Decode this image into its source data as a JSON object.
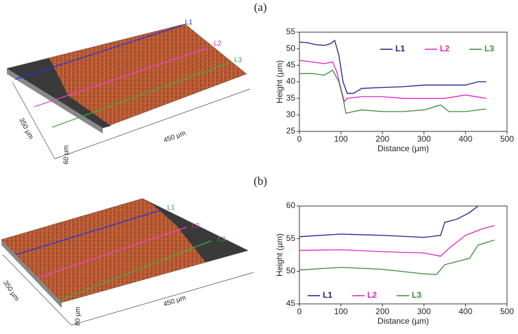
{
  "chart_data": [
    {
      "type": "line",
      "label": "(a)",
      "xlabel": "Distance (µm)",
      "ylabel": "Height (µm)",
      "xlim": [
        0,
        500
      ],
      "xticks": [
        0,
        100,
        200,
        300,
        400,
        500
      ],
      "ylim": [
        25,
        55
      ],
      "yticks": [
        25,
        30,
        35,
        40,
        45,
        50,
        55
      ],
      "legend": "upper right",
      "series": [
        {
          "name": "L1",
          "color": "#1a1a8c",
          "x": [
            0,
            20,
            40,
            60,
            75,
            85,
            95,
            105,
            115,
            130,
            150,
            200,
            250,
            300,
            350,
            400,
            430,
            450
          ],
          "values": [
            52,
            51.8,
            51.2,
            51,
            51.5,
            52.5,
            48,
            40,
            36.5,
            36.5,
            38,
            38.3,
            38.5,
            39,
            39,
            39,
            40,
            40
          ]
        },
        {
          "name": "L2",
          "color": "#e020c0",
          "x": [
            0,
            30,
            60,
            80,
            90,
            100,
            108,
            115,
            150,
            200,
            250,
            300,
            350,
            400,
            450
          ],
          "values": [
            46.5,
            46,
            45.5,
            46,
            43,
            38,
            34,
            35,
            35.5,
            35.5,
            35,
            35,
            35,
            36,
            35
          ]
        },
        {
          "name": "L3",
          "color": "#3a8a3a",
          "x": [
            0,
            30,
            60,
            80,
            95,
            105,
            112,
            130,
            150,
            200,
            250,
            300,
            340,
            360,
            400,
            450
          ],
          "values": [
            42.5,
            42.5,
            42,
            43.5,
            40,
            35,
            30.5,
            31,
            31.5,
            31,
            31,
            31.5,
            33,
            31,
            31,
            31.8
          ]
        }
      ]
    },
    {
      "type": "line",
      "label": "(b)",
      "xlabel": "Distance (µm)",
      "ylabel": "Height (µm)",
      "xlim": [
        0,
        500
      ],
      "xticks": [
        0,
        100,
        200,
        300,
        400,
        500
      ],
      "ylim": [
        45,
        60
      ],
      "yticks": [
        45,
        50,
        55,
        60
      ],
      "legend": "lower left",
      "series": [
        {
          "name": "L1",
          "color": "#1a1a8c",
          "x": [
            0,
            100,
            200,
            300,
            340,
            350,
            380,
            410,
            430
          ],
          "values": [
            55.3,
            55.7,
            55.5,
            55.2,
            55.5,
            57.5,
            58,
            59,
            60
          ]
        },
        {
          "name": "L2",
          "color": "#e020c0",
          "x": [
            0,
            100,
            200,
            300,
            340,
            360,
            400,
            440,
            470
          ],
          "values": [
            53.2,
            53.3,
            53,
            52.8,
            52.3,
            53.5,
            55.5,
            56.5,
            57
          ]
        },
        {
          "name": "L3",
          "color": "#3a8a3a",
          "x": [
            0,
            100,
            200,
            300,
            330,
            350,
            380,
            410,
            430,
            470
          ],
          "values": [
            50.2,
            50.6,
            50.3,
            49.6,
            49.5,
            51,
            51.5,
            52,
            54,
            54.8
          ]
        }
      ]
    }
  ],
  "images": [
    {
      "lines": [
        "L1",
        "L2",
        "L3"
      ],
      "width_label": "350 µm",
      "length_label": "450 µm",
      "height_label": "60 µm"
    },
    {
      "lines": [
        "L1",
        "L2",
        "L3"
      ],
      "width_label": "350 µm",
      "length_label": "450 µm",
      "height_label": "80 µm"
    }
  ]
}
